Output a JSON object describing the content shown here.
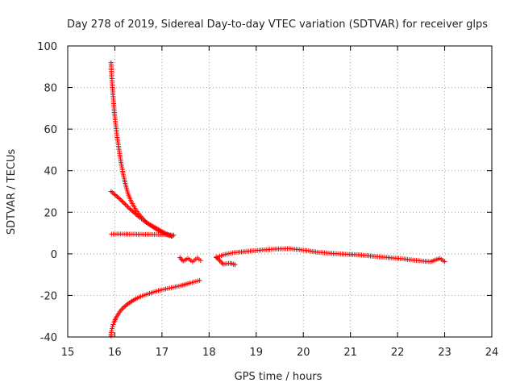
{
  "chart_data": {
    "type": "scatter",
    "title": "Day 278 of 2019, Sidereal Day-to-day VTEC variation (SDTVAR) for receiver glps",
    "xlabel": "GPS time / hours",
    "ylabel": "SDTVAR / TECUs",
    "xlim": [
      15,
      24
    ],
    "ylim": [
      -40,
      100
    ],
    "xticks": [
      "15",
      "16",
      "17",
      "18",
      "19",
      "20",
      "21",
      "22",
      "23",
      "24"
    ],
    "yticks": [
      "100",
      "80",
      "60",
      "40",
      "20",
      "0",
      "-20",
      "-40"
    ],
    "grid": true,
    "marker": "plus",
    "color": "#ff0000",
    "series": [
      {
        "segments": [
          [
            [
              15.92,
              92
            ],
            [
              15.93,
              86
            ],
            [
              15.95,
              80
            ],
            [
              15.97,
              74
            ],
            [
              15.99,
              68
            ],
            [
              16.02,
              62
            ],
            [
              16.05,
              56
            ],
            [
              16.09,
              50
            ],
            [
              16.13,
              44
            ],
            [
              16.18,
              38
            ],
            [
              16.23,
              33
            ],
            [
              16.28,
              29
            ],
            [
              16.35,
              25
            ],
            [
              16.45,
              21
            ],
            [
              16.55,
              18
            ],
            [
              16.65,
              15.5
            ],
            [
              16.75,
              14
            ],
            [
              16.85,
              12.8
            ],
            [
              16.95,
              11.5
            ],
            [
              17.05,
              10.2
            ],
            [
              17.15,
              9.2
            ],
            [
              17.22,
              8.5
            ]
          ],
          [
            [
              15.92,
              30
            ],
            [
              16.0,
              28.5
            ],
            [
              16.1,
              26.5
            ],
            [
              16.2,
              24.3
            ],
            [
              16.3,
              22
            ],
            [
              16.4,
              20
            ],
            [
              16.5,
              18
            ],
            [
              16.6,
              16.2
            ],
            [
              16.7,
              14.5
            ],
            [
              16.8,
              13
            ],
            [
              16.9,
              11.5
            ],
            [
              17.0,
              10.3
            ],
            [
              17.1,
              9.2
            ],
            [
              17.2,
              8.5
            ]
          ],
          [
            [
              15.93,
              9.5
            ],
            [
              16.2,
              9.5
            ],
            [
              16.5,
              9.4
            ],
            [
              16.8,
              9.3
            ],
            [
              17.0,
              9.2
            ],
            [
              17.25,
              9.0
            ]
          ],
          [
            [
              15.92,
              -39.5
            ],
            [
              15.93,
              -37
            ],
            [
              15.95,
              -35
            ],
            [
              15.98,
              -33
            ],
            [
              16.02,
              -31
            ],
            [
              16.06,
              -29.5
            ],
            [
              16.1,
              -28
            ],
            [
              16.15,
              -26.6
            ],
            [
              16.2,
              -25.5
            ],
            [
              16.28,
              -24
            ],
            [
              16.36,
              -22.8
            ],
            [
              16.45,
              -21.6
            ],
            [
              16.55,
              -20.5
            ],
            [
              16.7,
              -19.3
            ],
            [
              16.85,
              -18.2
            ],
            [
              17.0,
              -17.3
            ],
            [
              17.2,
              -16.3
            ],
            [
              17.4,
              -15.3
            ],
            [
              17.6,
              -14
            ],
            [
              17.8,
              -12.8
            ]
          ],
          [
            [
              17.38,
              -1.8
            ],
            [
              17.45,
              -3.5
            ],
            [
              17.55,
              -2.2
            ],
            [
              17.65,
              -3.8
            ],
            [
              17.75,
              -2.0
            ],
            [
              17.82,
              -3.2
            ]
          ],
          [
            [
              18.15,
              -1.5
            ],
            [
              18.3,
              -5.0
            ],
            [
              18.45,
              -4.5
            ],
            [
              18.55,
              -5.2
            ]
          ],
          [
            [
              18.15,
              -1.8
            ],
            [
              18.3,
              -0.5
            ],
            [
              18.5,
              0.5
            ],
            [
              18.8,
              1.2
            ],
            [
              19.1,
              1.8
            ],
            [
              19.4,
              2.3
            ],
            [
              19.7,
              2.5
            ],
            [
              20.0,
              1.8
            ],
            [
              20.3,
              0.8
            ],
            [
              20.6,
              0.2
            ],
            [
              20.9,
              -0.2
            ],
            [
              21.2,
              -0.5
            ],
            [
              21.5,
              -1.2
            ],
            [
              21.8,
              -1.8
            ],
            [
              22.1,
              -2.4
            ],
            [
              22.4,
              -3.2
            ],
            [
              22.7,
              -3.8
            ],
            [
              22.9,
              -2.2
            ],
            [
              23.0,
              -3.8
            ]
          ]
        ]
      }
    ]
  }
}
